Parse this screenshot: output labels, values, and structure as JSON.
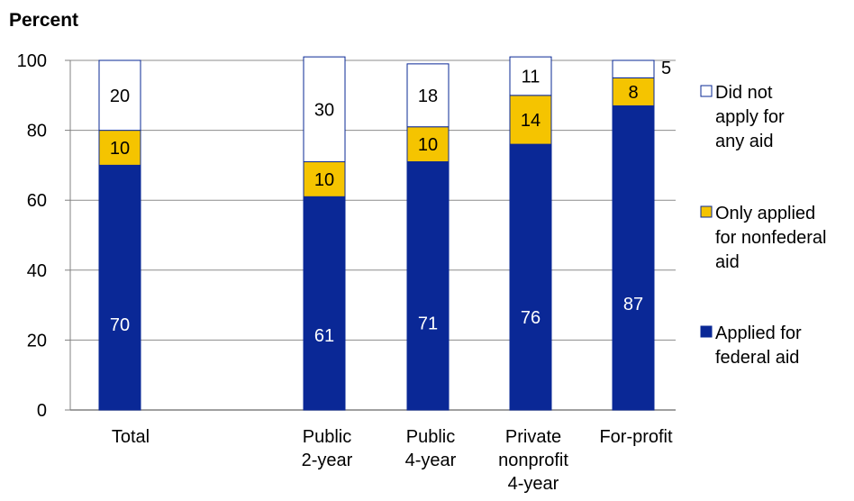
{
  "chart_data": {
    "type": "bar",
    "stacked": true,
    "ylabel": "Percent",
    "ylim": [
      0,
      100
    ],
    "yticks": [
      0,
      20,
      40,
      60,
      80,
      100
    ],
    "grid": true,
    "legend_position": "right",
    "categories": [
      {
        "label": [
          "Total"
        ],
        "gap_after": true
      },
      {
        "label": [
          "Public",
          "2-year"
        ]
      },
      {
        "label": [
          "Public",
          "4-year"
        ]
      },
      {
        "label": [
          "Private",
          "nonprofit",
          "4-year"
        ]
      },
      {
        "label": [
          "For-profit"
        ]
      }
    ],
    "series": [
      {
        "name": "Applied for federal aid",
        "legend": [
          "Applied for",
          "federal aid"
        ],
        "color": "#0a2896",
        "label_color": "#ffffff",
        "values": [
          70,
          61,
          71,
          76,
          87
        ]
      },
      {
        "name": "Only applied for nonfederal aid",
        "legend": [
          "Only applied",
          "for nonfederal",
          "aid"
        ],
        "color": "#f5c400",
        "label_color": "#000000",
        "values": [
          10,
          10,
          10,
          14,
          8
        ]
      },
      {
        "name": "Did not apply for any aid",
        "legend": [
          "Did not",
          "apply for",
          "any aid"
        ],
        "color": "#ffffff",
        "label_color": "#000000",
        "values": [
          20,
          30,
          18,
          11,
          5
        ]
      }
    ]
  }
}
